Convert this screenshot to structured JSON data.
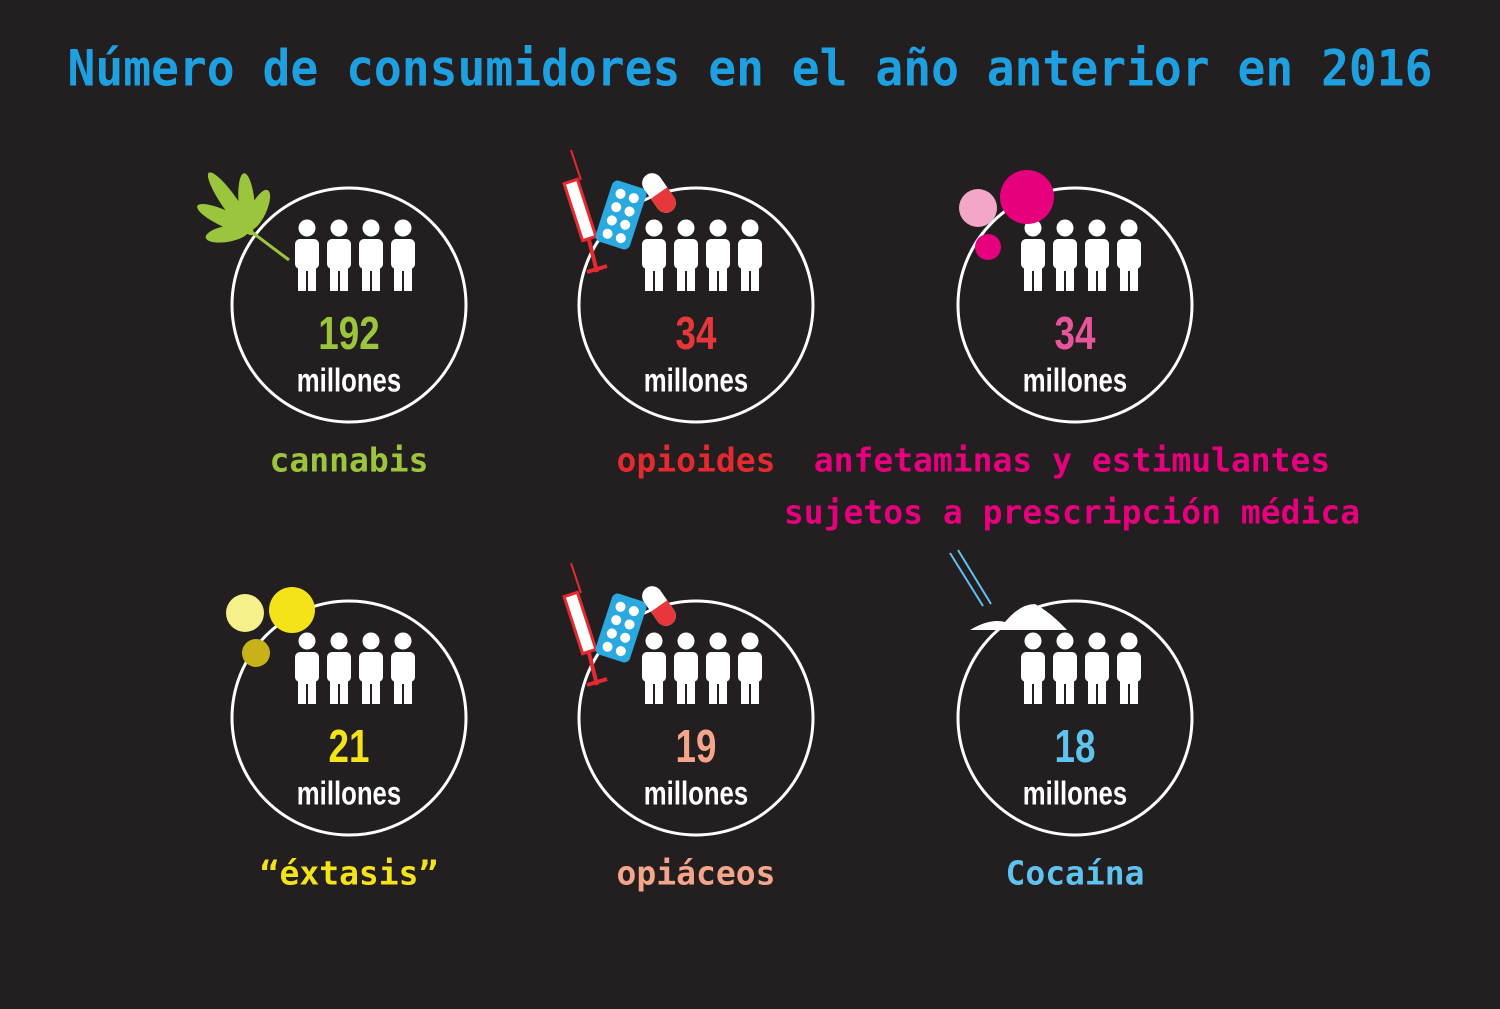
{
  "title": "Número de consumidores en el año anterior en 2016",
  "items": [
    {
      "value": 192,
      "unit": "millones",
      "label": "cannabis"
    },
    {
      "value": 34,
      "unit": "millones",
      "label": "opioides"
    },
    {
      "value": 34,
      "unit": "millones",
      "label": [
        "anfetaminas y estimulantes",
        "sujetos a prescripción médica"
      ]
    },
    {
      "value": 21,
      "unit": "millones",
      "label": "“éxtasis”"
    },
    {
      "value": 19,
      "unit": "millones",
      "label": "opiáceos"
    },
    {
      "value": 18,
      "unit": "millones",
      "label": "Cocaína"
    }
  ]
}
